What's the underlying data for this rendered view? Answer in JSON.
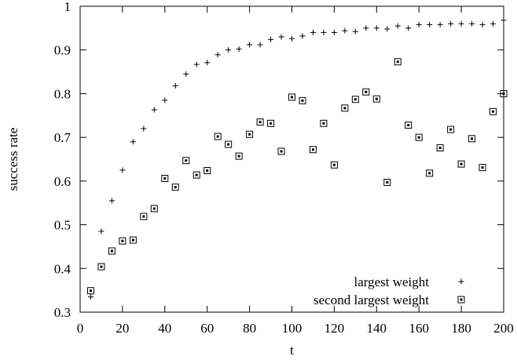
{
  "chart_data": {
    "type": "scatter",
    "xlabel": "t",
    "ylabel": "success rate",
    "xlim": [
      0,
      200
    ],
    "ylim": [
      0.3,
      1.0
    ],
    "x_ticks": [
      "0",
      "20",
      "40",
      "60",
      "80",
      "100",
      "120",
      "140",
      "160",
      "180",
      "200"
    ],
    "y_ticks": [
      "0.3",
      "0.4",
      "0.5",
      "0.6",
      "0.7",
      "0.8",
      "0.9",
      "1"
    ],
    "grid": false,
    "legend_position": "bottom-right",
    "series": [
      {
        "name": "largest weight",
        "marker": "plus",
        "x": [
          5,
          10,
          15,
          20,
          25,
          30,
          35,
          40,
          45,
          50,
          55,
          60,
          65,
          70,
          75,
          80,
          85,
          90,
          95,
          100,
          105,
          110,
          115,
          120,
          125,
          130,
          135,
          140,
          145,
          150,
          155,
          160,
          165,
          170,
          175,
          180,
          185,
          190,
          195,
          200
        ],
        "y": [
          0.335,
          0.485,
          0.555,
          0.625,
          0.69,
          0.72,
          0.763,
          0.785,
          0.818,
          0.845,
          0.867,
          0.871,
          0.889,
          0.9,
          0.902,
          0.912,
          0.912,
          0.924,
          0.93,
          0.926,
          0.932,
          0.94,
          0.94,
          0.94,
          0.944,
          0.942,
          0.95,
          0.95,
          0.948,
          0.955,
          0.95,
          0.958,
          0.958,
          0.958,
          0.96,
          0.96,
          0.96,
          0.958,
          0.96,
          0.968
        ]
      },
      {
        "name": "second largest weight",
        "marker": "boxed-dot",
        "x": [
          5,
          10,
          15,
          20,
          25,
          30,
          35,
          40,
          45,
          50,
          55,
          60,
          65,
          70,
          75,
          80,
          85,
          90,
          95,
          100,
          105,
          110,
          115,
          120,
          125,
          130,
          135,
          140,
          145,
          150,
          155,
          160,
          165,
          170,
          175,
          180,
          185,
          190,
          195,
          200
        ],
        "y": [
          0.349,
          0.404,
          0.44,
          0.463,
          0.465,
          0.519,
          0.537,
          0.606,
          0.586,
          0.647,
          0.614,
          0.624,
          0.702,
          0.684,
          0.657,
          0.707,
          0.735,
          0.732,
          0.668,
          0.792,
          0.784,
          0.672,
          0.732,
          0.637,
          0.767,
          0.787,
          0.804,
          0.788,
          0.597,
          0.873,
          0.728,
          0.7,
          0.618,
          0.676,
          0.718,
          0.639,
          0.697,
          0.631,
          0.759,
          0.8
        ]
      }
    ]
  }
}
